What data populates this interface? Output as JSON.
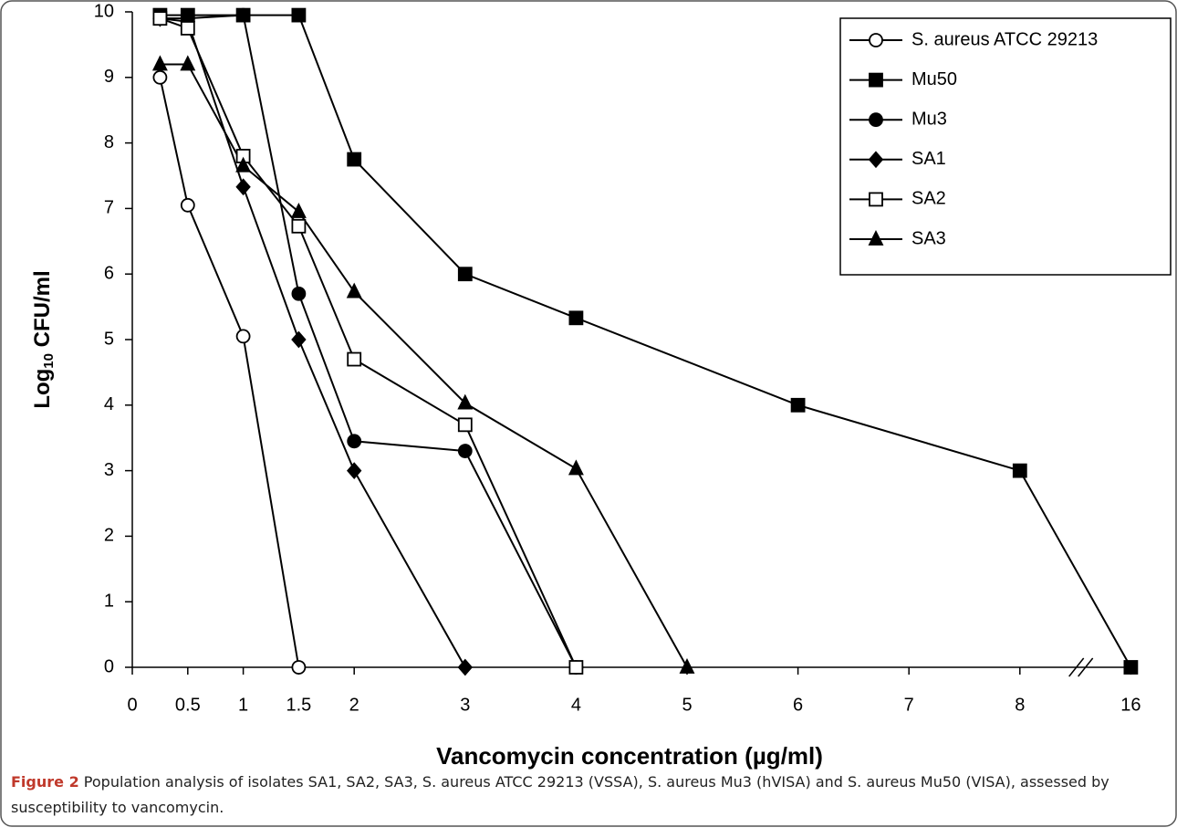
{
  "chart_data": {
    "type": "line",
    "x_label": "Vancomycin concentration (µg/ml)",
    "y_label": [
      "Log",
      "10",
      " CFU/ml"
    ],
    "xlim": [
      0,
      16
    ],
    "xticks": [
      0,
      0.5,
      1,
      1.5,
      2,
      3,
      4,
      5,
      6,
      7,
      8,
      16
    ],
    "x_break": [
      8,
      16
    ],
    "ylim": [
      0,
      10
    ],
    "yticks": [
      0,
      1,
      2,
      3,
      4,
      5,
      6,
      7,
      8,
      9,
      10
    ],
    "grid": false,
    "legend": "upper right",
    "series": [
      {
        "name": "S. aureus ATCC 29213",
        "color": "#000000",
        "marker": "circle-open",
        "x": [
          0.25,
          0.5,
          1,
          1.5
        ],
        "values": [
          9.0,
          7.05,
          5.05,
          0
        ]
      },
      {
        "name": "Mu50",
        "color": "#000000",
        "marker": "square",
        "x": [
          0.25,
          0.5,
          1,
          1.5,
          2,
          3,
          4,
          6,
          8,
          16
        ],
        "values": [
          9.95,
          9.95,
          9.95,
          9.95,
          7.75,
          6.0,
          5.33,
          4.0,
          3.0,
          0
        ]
      },
      {
        "name": "Mu3",
        "color": "#000000",
        "marker": "circle",
        "x": [
          0.25,
          0.5,
          1,
          1.5,
          2,
          3,
          4
        ],
        "values": [
          9.9,
          9.9,
          9.95,
          5.7,
          3.45,
          3.3,
          0
        ]
      },
      {
        "name": "SA1",
        "color": "#000000",
        "marker": "diamond",
        "x": [
          0.25,
          0.5,
          1,
          1.5,
          2,
          3
        ],
        "values": [
          9.9,
          9.85,
          7.33,
          5.0,
          3.0,
          0
        ]
      },
      {
        "name": "SA2",
        "color": "#000000",
        "marker": "square-open",
        "x": [
          0.25,
          0.5,
          1,
          1.5,
          2,
          3,
          4
        ],
        "values": [
          9.9,
          9.75,
          7.8,
          6.73,
          4.7,
          3.7,
          0
        ]
      },
      {
        "name": "SA3",
        "color": "#000000",
        "marker": "triangle",
        "x": [
          0.25,
          0.5,
          1,
          1.5,
          2,
          3,
          4,
          5
        ],
        "values": [
          9.2,
          9.2,
          7.65,
          6.95,
          5.73,
          4.03,
          3.03,
          0
        ]
      }
    ]
  },
  "caption": {
    "label": "Figure 2",
    "text": " Population analysis of isolates SA1, SA2, SA3, S. aureus ATCC 29213 (VSSA), S. aureus Mu3 (hVISA) and S. aureus Mu50 (VISA), assessed by susceptibility to vancomycin."
  }
}
